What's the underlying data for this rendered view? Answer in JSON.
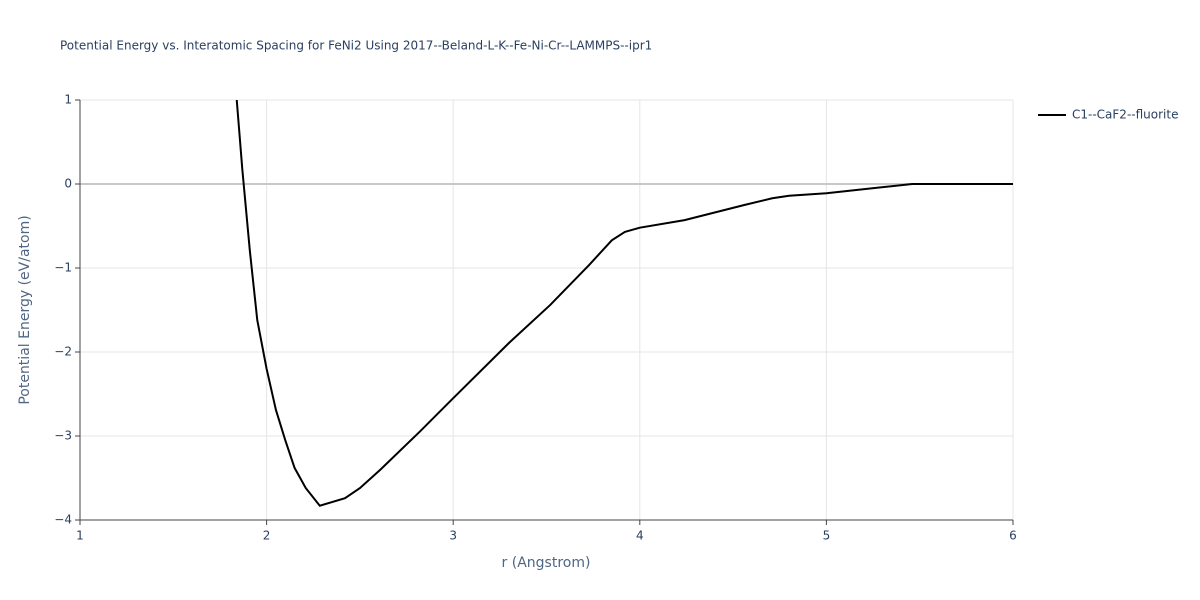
{
  "chart_data": {
    "type": "line",
    "title": "Potential Energy vs. Interatomic Spacing for FeNi2 Using 2017--Beland-L-K--Fe-Ni-Cr--LAMMPS--ipr1",
    "x_label": "r (Angstrom)",
    "y_label": "Potential Energy (eV/atom)",
    "x": [
      1.84,
      1.87,
      1.91,
      1.95,
      2.0,
      2.05,
      2.1,
      2.15,
      2.21,
      2.285,
      2.42,
      2.5,
      2.61,
      2.82,
      3.0,
      3.3,
      3.52,
      3.73,
      3.85,
      3.92,
      4.0,
      4.24,
      4.56,
      4.71,
      4.8,
      5.0,
      5.29,
      5.46,
      6.0
    ],
    "series": [
      {
        "name": "C1--CaF2--fluorite",
        "color": "#000000",
        "values": [
          1.0,
          0.17,
          -0.79,
          -1.62,
          -2.2,
          -2.69,
          -3.05,
          -3.38,
          -3.62,
          -3.83,
          -3.74,
          -3.62,
          -3.4,
          -2.95,
          -2.55,
          -1.89,
          -1.44,
          -0.96,
          -0.67,
          -0.57,
          -0.52,
          -0.43,
          -0.25,
          -0.17,
          -0.14,
          -0.11,
          -0.04,
          0.0,
          0.0
        ]
      }
    ],
    "xlim": [
      1,
      6
    ],
    "xticks": [
      1,
      2,
      3,
      4,
      5,
      6
    ],
    "ylim": [
      -4,
      1
    ],
    "yticks": [
      {
        "value": -4,
        "label": "−4"
      },
      {
        "value": -3,
        "label": "−3"
      },
      {
        "value": -2,
        "label": "−2"
      },
      {
        "value": -1,
        "label": "−1"
      },
      0,
      1
    ],
    "grid": true,
    "legend": "right"
  }
}
